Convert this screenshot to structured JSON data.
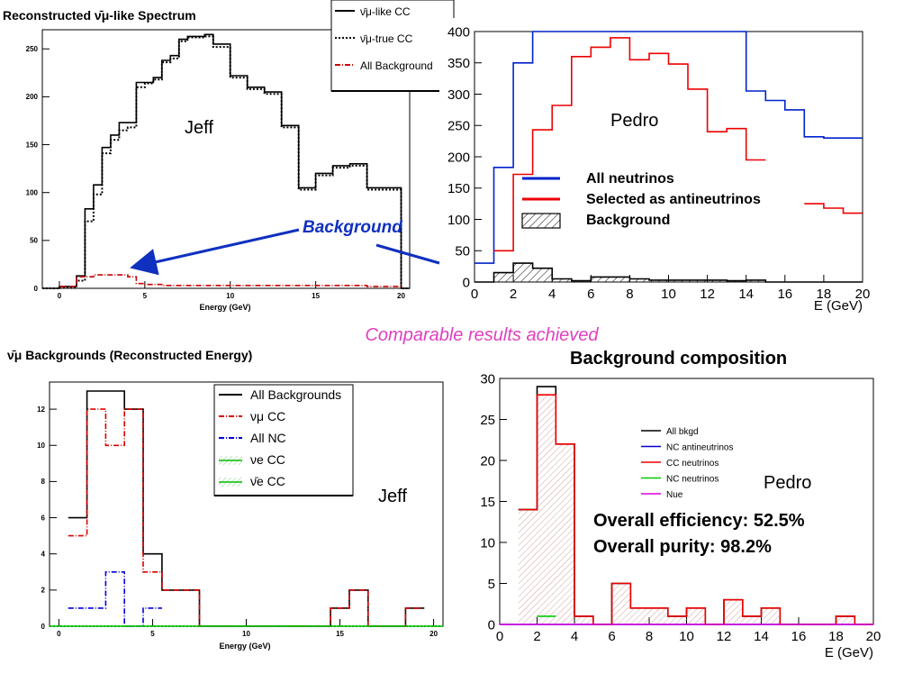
{
  "center_caption": "Comparable results achieved",
  "background_callout": "Background",
  "chart_data": [
    {
      "id": "tl",
      "type": "line",
      "title_prefix": "Reconstructed ",
      "title_symbol": "ν̄μ",
      "title_suffix": "-like Spectrum",
      "xlabel": "Energy (GeV)",
      "ylabel": "",
      "xlim": [
        -1,
        20.5
      ],
      "ylim": [
        0,
        270
      ],
      "xticks": [
        0,
        5,
        10,
        15,
        20
      ],
      "yticks": [
        0,
        50,
        100,
        150,
        200,
        250
      ],
      "annotation": "Jeff",
      "legend_position": "top-right",
      "series": [
        {
          "name": "ν̄μ-like CC",
          "style": "solid",
          "color": "#000000",
          "edges": [
            -1,
            0,
            1,
            1.5,
            2,
            2.5,
            3,
            3.5,
            4,
            4.5,
            5,
            5.5,
            6,
            6.5,
            7,
            7.5,
            8,
            8.5,
            9,
            9.5,
            10,
            11,
            12,
            13,
            14,
            15,
            16,
            17,
            18,
            19,
            20,
            20.5
          ],
          "values": [
            0,
            2,
            13,
            83,
            108,
            147,
            160,
            173,
            173,
            215,
            215,
            220,
            238,
            243,
            260,
            263,
            263,
            265,
            255,
            255,
            222,
            210,
            205,
            170,
            105,
            120,
            128,
            130,
            105,
            105,
            0
          ]
        },
        {
          "name": "ν̄μ-true CC",
          "style": "dotted",
          "color": "#000000",
          "edges": [
            -1,
            0,
            1,
            1.5,
            2,
            2.5,
            3,
            3.5,
            4,
            4.5,
            5,
            5.5,
            6,
            6.5,
            7,
            7.5,
            8,
            8.5,
            9,
            9.5,
            10,
            11,
            12,
            13,
            14,
            15,
            16,
            17,
            18,
            19,
            20,
            20.5
          ],
          "values": [
            0,
            1,
            8,
            70,
            98,
            141,
            155,
            165,
            168,
            210,
            214,
            218,
            236,
            240,
            258,
            262,
            262,
            263,
            252,
            252,
            220,
            208,
            203,
            168,
            103,
            118,
            126,
            128,
            103,
            103,
            0
          ]
        },
        {
          "name": "All Background",
          "style": "dashdot",
          "color": "#cc0000",
          "edges": [
            0,
            1,
            2,
            3,
            4,
            4.5,
            5,
            6,
            7,
            8,
            9,
            10,
            11,
            12,
            13,
            14,
            15,
            16,
            17,
            18,
            19,
            20
          ],
          "values": [
            2,
            12,
            14,
            14,
            12,
            5,
            4,
            3,
            3,
            3,
            3,
            3,
            3,
            3,
            3,
            3,
            3,
            3,
            3,
            2,
            2
          ]
        }
      ]
    },
    {
      "id": "tr",
      "type": "line",
      "title": "",
      "xlabel": "E (GeV)",
      "ylabel": "",
      "xlim": [
        0,
        20
      ],
      "ylim": [
        0,
        400
      ],
      "xticks": [
        0,
        2,
        4,
        6,
        8,
        10,
        12,
        14,
        16,
        18,
        20
      ],
      "yticks": [
        0,
        50,
        100,
        150,
        200,
        250,
        300,
        350,
        400
      ],
      "annotation": "Pedro",
      "legend_position": "middle",
      "series": [
        {
          "name": "All neutrinos",
          "color": "#0022cc",
          "edges": [
            0,
            1,
            2,
            3,
            4,
            6,
            8,
            10,
            12,
            13,
            14,
            15,
            16,
            17,
            18,
            19,
            20
          ],
          "values": [
            30,
            183,
            350,
            400,
            400,
            400,
            400,
            400,
            400,
            400,
            305,
            290,
            275,
            232,
            230,
            230
          ]
        },
        {
          "name": "Selected as antineutrinos",
          "color": "#ee0000",
          "edges": [
            1,
            2,
            3,
            4,
            5,
            6,
            7,
            8,
            9,
            10,
            11,
            12,
            13,
            14,
            15
          ],
          "values": [
            50,
            172,
            243,
            282,
            360,
            375,
            390,
            355,
            365,
            348,
            308,
            240,
            245,
            195
          ],
          "tail_edges": [
            17,
            18,
            19,
            20
          ],
          "tail_values": [
            125,
            118,
            110
          ]
        },
        {
          "name": "Background",
          "color": "#000000",
          "hatched": true,
          "edges": [
            0,
            1,
            2,
            3,
            4,
            5,
            6,
            7,
            8,
            9,
            10,
            11,
            12,
            13,
            14,
            15,
            16,
            17,
            18,
            19,
            20
          ],
          "values": [
            0,
            15,
            30,
            22,
            5,
            2,
            8,
            8,
            5,
            3,
            3,
            3,
            3,
            2,
            3,
            0,
            0,
            0,
            0,
            0
          ]
        }
      ]
    },
    {
      "id": "bl",
      "type": "line",
      "title_symbol": "ν̄μ",
      "title_suffix": " Backgrounds (Reconstructed Energy)",
      "xlabel": "Energy (GeV)",
      "ylabel": "",
      "xlim": [
        -0.5,
        20.5
      ],
      "ylim": [
        0,
        13.5
      ],
      "xticks": [
        0,
        5,
        10,
        15,
        20
      ],
      "yticks": [
        0,
        2,
        4,
        6,
        8,
        10,
        12
      ],
      "annotation": "Jeff",
      "legend_position": "top-right",
      "series": [
        {
          "name": "All Backgrounds",
          "style": "solid",
          "color": "#000000",
          "edges": [
            0.5,
            1.5,
            2.5,
            3.5,
            4.5,
            5.5,
            6.5,
            7.5,
            8.5,
            14.5,
            15.5,
            16.5,
            18.5,
            19.5
          ],
          "values": [
            6,
            13,
            13,
            12,
            4,
            2,
            2,
            0,
            0,
            1,
            2,
            0,
            1
          ]
        },
        {
          "name": "νμ CC",
          "style": "dashdot",
          "color": "#dd0000",
          "edges": [
            0.5,
            1.5,
            2.5,
            3.5,
            4.5,
            5.5,
            6.5,
            7.5,
            8.5,
            14.5,
            15.5,
            16.5,
            18.5,
            19.5
          ],
          "values": [
            5,
            12,
            10,
            12,
            3,
            2,
            2,
            0,
            0,
            1,
            2,
            0,
            1
          ]
        },
        {
          "name": "All NC",
          "style": "dashdot",
          "color": "#0000dd",
          "edges": [
            0.5,
            1.5,
            2.5,
            3.5,
            4.5,
            5.5
          ],
          "values": [
            1,
            1,
            3,
            0,
            1
          ]
        },
        {
          "name": "νe CC",
          "style": "solid",
          "color": "#00bb00",
          "edges": [
            -0.5,
            20.5
          ],
          "values": [
            0
          ]
        },
        {
          "name": "ν̄e CC",
          "style": "dotted",
          "color": "#00bb00",
          "edges": [
            -0.5,
            20.5
          ],
          "values": [
            0
          ]
        }
      ]
    },
    {
      "id": "br",
      "type": "line",
      "title": "Background composition",
      "xlabel": "E (GeV)",
      "ylabel": "",
      "xlim": [
        0,
        20
      ],
      "ylim": [
        0,
        30
      ],
      "xticks": [
        0,
        2,
        4,
        6,
        8,
        10,
        12,
        14,
        16,
        18,
        20
      ],
      "yticks": [
        0,
        5,
        10,
        15,
        20,
        25,
        30
      ],
      "annotation": "Pedro",
      "stats": [
        "Overall efficiency: 52.5%",
        "Overall purity: 98.2%"
      ],
      "legend_position": "top-middle",
      "series": [
        {
          "name": "All bkgd",
          "color": "#000000",
          "edges": [
            1,
            2,
            3,
            4,
            5,
            6,
            7,
            8,
            9,
            10,
            11,
            12,
            13,
            14,
            15,
            16,
            18,
            19,
            20
          ],
          "values": [
            14,
            29,
            22,
            1,
            0,
            5,
            2,
            2,
            1,
            2,
            0,
            3,
            1,
            2,
            0,
            0,
            1,
            0
          ]
        },
        {
          "name": "NC antineutrinos",
          "color": "#0000cc",
          "edges": [
            0,
            20
          ],
          "values": [
            0
          ]
        },
        {
          "name": "CC neutrinos",
          "color": "#ee0000",
          "hatched": true,
          "edges": [
            1,
            2,
            3,
            4,
            5,
            6,
            7,
            8,
            9,
            10,
            11,
            12,
            13,
            14,
            15,
            16,
            18,
            19,
            20
          ],
          "values": [
            14,
            28,
            22,
            1,
            0,
            5,
            2,
            2,
            1,
            2,
            0,
            3,
            1,
            2,
            0,
            0,
            1,
            0
          ]
        },
        {
          "name": "NC neutrinos",
          "color": "#00cc00",
          "edges": [
            2,
            3
          ],
          "values": [
            1
          ]
        },
        {
          "name": "Nue",
          "color": "#dd00dd",
          "edges": [
            0,
            20
          ],
          "values": [
            0
          ]
        }
      ]
    }
  ]
}
